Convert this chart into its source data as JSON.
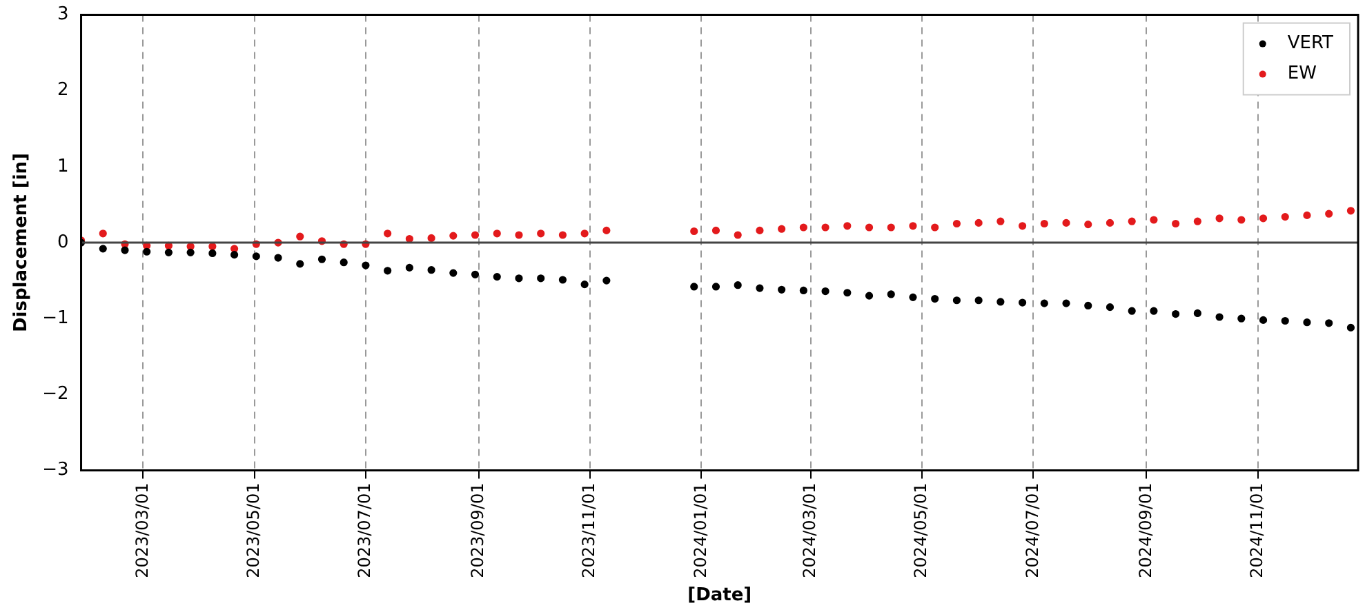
{
  "chart_data": {
    "type": "scatter",
    "xlabel": "[Date]",
    "ylabel": "Displacement [in]",
    "x": [
      "2023-01-26",
      "2023-02-07",
      "2023-02-19",
      "2023-03-03",
      "2023-03-15",
      "2023-03-27",
      "2023-04-08",
      "2023-04-20",
      "2023-05-02",
      "2023-05-14",
      "2023-05-26",
      "2023-06-07",
      "2023-06-19",
      "2023-07-01",
      "2023-07-13",
      "2023-07-25",
      "2023-08-06",
      "2023-08-18",
      "2023-08-30",
      "2023-09-11",
      "2023-09-23",
      "2023-10-05",
      "2023-10-17",
      "2023-10-29",
      "2023-11-10",
      "2023-12-28",
      "2024-01-09",
      "2024-01-21",
      "2024-02-02",
      "2024-02-14",
      "2024-02-26",
      "2024-03-09",
      "2024-03-21",
      "2024-04-02",
      "2024-04-14",
      "2024-04-26",
      "2024-05-08",
      "2024-05-20",
      "2024-06-01",
      "2024-06-13",
      "2024-06-25",
      "2024-07-07",
      "2024-07-19",
      "2024-07-31",
      "2024-08-12",
      "2024-08-24",
      "2024-09-05",
      "2024-09-17",
      "2024-09-29",
      "2024-10-11",
      "2024-10-23",
      "2024-11-04",
      "2024-11-16",
      "2024-11-28",
      "2024-12-10",
      "2024-12-22"
    ],
    "series": [
      {
        "name": "VERT",
        "color": "#000000",
        "values": [
          0,
          -0.08,
          -0.1,
          -0.12,
          -0.13,
          -0.13,
          -0.14,
          -0.16,
          -0.18,
          -0.2,
          -0.28,
          -0.22,
          -0.26,
          -0.3,
          -0.37,
          -0.33,
          -0.36,
          -0.4,
          -0.42,
          -0.45,
          -0.47,
          -0.47,
          -0.49,
          -0.55,
          -0.5,
          -0.58,
          -0.58,
          -0.56,
          -0.6,
          -0.62,
          -0.63,
          -0.64,
          -0.66,
          -0.7,
          -0.68,
          -0.72,
          -0.74,
          -0.76,
          -0.76,
          -0.78,
          -0.79,
          -0.8,
          -0.8,
          -0.83,
          -0.85,
          -0.9,
          -0.9,
          -0.94,
          -0.93,
          -0.98,
          -1.0,
          -1.02,
          -1.03,
          -1.05,
          -1.06,
          -1.12
        ]
      },
      {
        "name": "EW",
        "color": "#e31a1c",
        "values": [
          0.03,
          0.12,
          -0.02,
          -0.04,
          -0.04,
          -0.05,
          -0.05,
          -0.08,
          -0.02,
          0.0,
          0.08,
          0.02,
          -0.02,
          -0.02,
          0.12,
          0.05,
          0.06,
          0.09,
          0.1,
          0.12,
          0.1,
          0.12,
          0.1,
          0.12,
          0.16,
          0.15,
          0.16,
          0.1,
          0.16,
          0.18,
          0.2,
          0.2,
          0.22,
          0.2,
          0.2,
          0.22,
          0.2,
          0.25,
          0.26,
          0.28,
          0.22,
          0.25,
          0.26,
          0.24,
          0.26,
          0.28,
          0.3,
          0.25,
          0.28,
          0.32,
          0.3,
          0.32,
          0.34,
          0.36,
          0.38,
          0.42
        ]
      }
    ],
    "xlim": [
      "2023-01-26",
      "2024-12-26"
    ],
    "xticks": [
      {
        "value": "2023-03-01",
        "label": "2023/03/01"
      },
      {
        "value": "2023-05-01",
        "label": "2023/05/01"
      },
      {
        "value": "2023-07-01",
        "label": "2023/07/01"
      },
      {
        "value": "2023-09-01",
        "label": "2023/09/01"
      },
      {
        "value": "2023-11-01",
        "label": "2023/11/01"
      },
      {
        "value": "2024-01-01",
        "label": "2024/01/01"
      },
      {
        "value": "2024-03-01",
        "label": "2024/03/01"
      },
      {
        "value": "2024-05-01",
        "label": "2024/05/01"
      },
      {
        "value": "2024-07-01",
        "label": "2024/07/01"
      },
      {
        "value": "2024-09-01",
        "label": "2024/09/01"
      },
      {
        "value": "2024-11-01",
        "label": "2024/11/01"
      }
    ],
    "ylim": [
      -3,
      3
    ],
    "yticks": [
      -3,
      -2,
      -1,
      0,
      1,
      2,
      3
    ],
    "ref_lines": [
      {
        "axis": "y",
        "value": 0,
        "color": "#444444"
      }
    ],
    "grid": "x",
    "legend": "top right",
    "marker": "circle"
  }
}
